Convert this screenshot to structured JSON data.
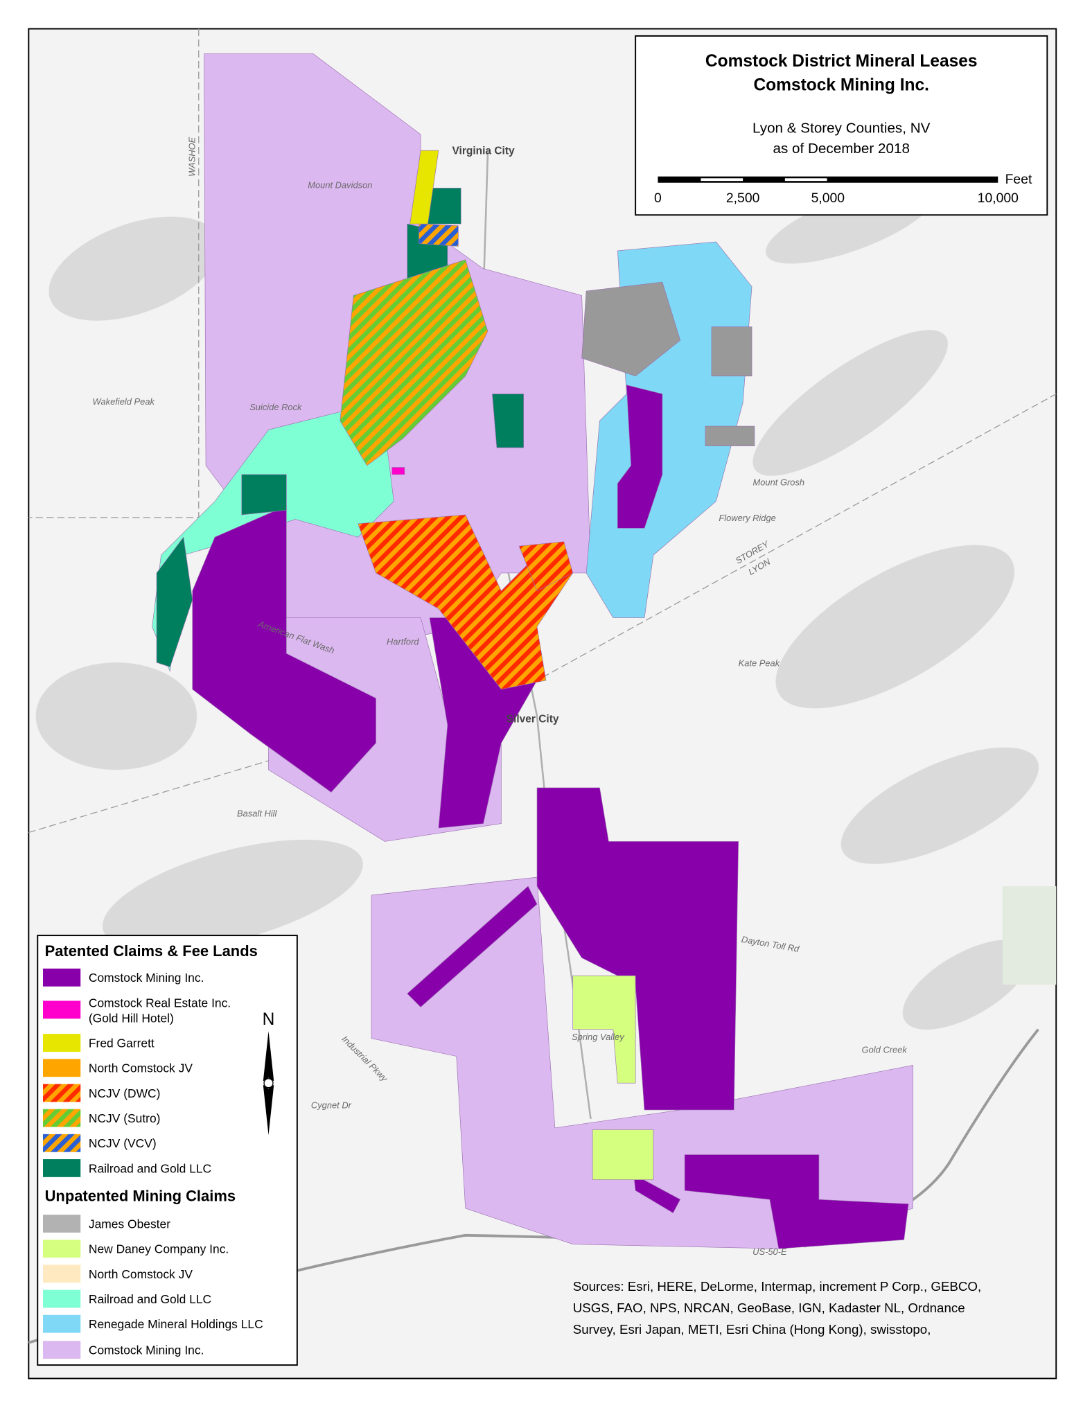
{
  "header": {
    "title": [
      "Comstock District Mineral Leases",
      "Comstock Mining Inc."
    ],
    "subtitle": [
      "Lyon & Storey Counties, NV",
      "as of December 2018"
    ]
  },
  "scale_bar": {
    "unit": "Feet",
    "labels": [
      "0",
      "2,500",
      "5,000",
      "10,000"
    ]
  },
  "north_arrow": "N",
  "legend": {
    "sections": [
      {
        "title": "Patented Claims & Fee Lands",
        "items": [
          [
            "Comstock Mining Inc."
          ],
          [
            "Comstock Real Estate Inc.",
            "(Gold Hill Hotel)"
          ],
          [
            "Fred Garrett"
          ],
          [
            "North Comstock JV"
          ],
          [
            "NCJV (DWC)"
          ],
          [
            "NCJV (Sutro)"
          ],
          [
            "NCJV (VCV)"
          ],
          [
            "Railroad and Gold LLC"
          ]
        ]
      },
      {
        "title": "Unpatented Mining Claims",
        "items": [
          [
            "James Obester"
          ],
          [
            "New Daney Company Inc."
          ],
          [
            "North Comstock JV"
          ],
          [
            "Railroad and Gold LLC"
          ],
          [
            "Renegade Mineral Holdings LLC"
          ],
          [
            "Comstock Mining Inc."
          ]
        ]
      }
    ]
  },
  "places": [
    "Virginia City",
    "Silver City",
    "Mount Grosh",
    "Flowery Ridge",
    "Kate Peak",
    "Basalt Hill",
    "Wakefield Peak",
    "Spring Valley",
    "Dayton Toll Rd",
    "Gold Creek",
    "STOREY",
    "LYON",
    "WASHOE",
    "Suicide Rock",
    "Mount Davidson",
    "Hartford",
    "American Flat Wash",
    "Industrial Pkwy",
    "Cygnet Dr",
    "US-50-E"
  ],
  "sources": [
    "Sources: Esri, HERE, DeLorme, Intermap, increment P Corp., GEBCO,",
    "USGS, FAO, NPS, NRCAN, GeoBase, IGN, Kadaster NL, Ordnance",
    "Survey, Esri Japan, METI, Esri China (Hong Kong), swisstopo,"
  ]
}
